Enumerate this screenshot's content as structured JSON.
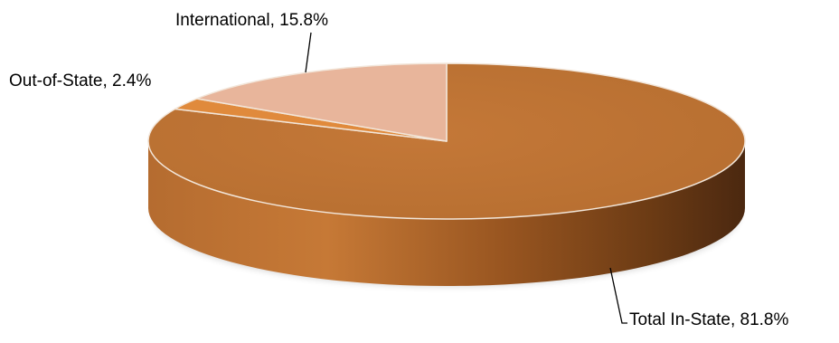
{
  "chart_data": {
    "type": "pie",
    "title": "",
    "slices": [
      {
        "label": "Total In-State",
        "value": 81.8,
        "display": "81.8%",
        "color": "#BC7232"
      },
      {
        "label": "Out-of-State",
        "value": 2.4,
        "display": "2.4%",
        "color": "#E08A3C"
      },
      {
        "label": "International",
        "value": 15.8,
        "display": "15.8%",
        "color": "#E8B59B"
      }
    ],
    "style": "3d-tilted",
    "legend": "none"
  },
  "colors": {
    "background": "#FFFFFF",
    "label_text": "#000000",
    "leader_line": "#000000",
    "slice_edge": "#F2E6DA"
  }
}
